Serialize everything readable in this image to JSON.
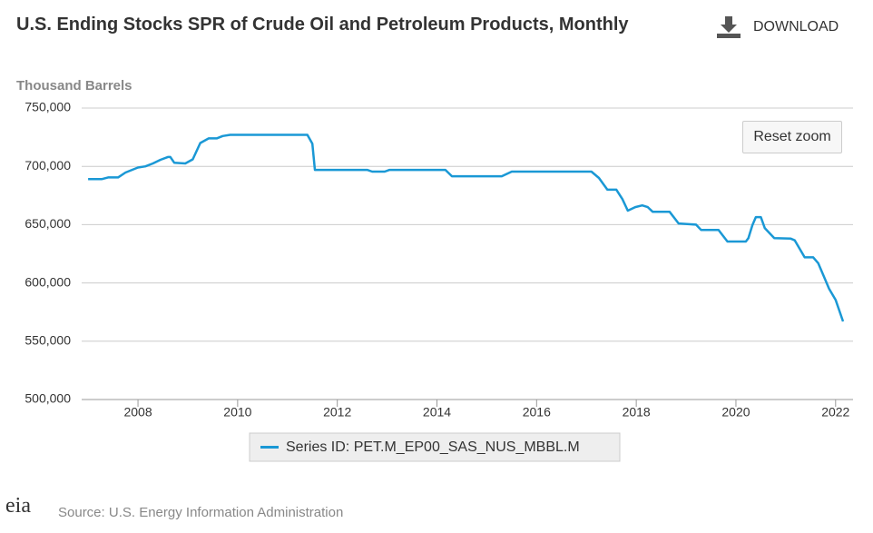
{
  "chart_data": {
    "type": "line",
    "title": "U.S. Ending Stocks SPR of Crude Oil and Petroleum Products, Monthly",
    "y_axis_label": "Thousand Barrels",
    "xlim": [
      2006.87,
      2022.35
    ],
    "xticks": [
      2008,
      2010,
      2012,
      2014,
      2016,
      2018,
      2020,
      2022
    ],
    "ylim": [
      500000,
      750000
    ],
    "yticks": [
      {
        "value": 500000,
        "label": "500,000"
      },
      {
        "value": 550000,
        "label": "550,000"
      },
      {
        "value": 600000,
        "label": "600,000"
      },
      {
        "value": 650000,
        "label": "650,000"
      },
      {
        "value": 700000,
        "label": "700,000"
      },
      {
        "value": 750000,
        "label": "750,000"
      }
    ],
    "grid": true,
    "series": [
      {
        "name": "Series ID: PET.M_EP00_SAS_NUS_MBBL.M",
        "color": "#1a98d5",
        "x": [
          2007.0,
          2007.27,
          2007.4,
          2007.6,
          2007.75,
          2008.0,
          2008.15,
          2008.3,
          2008.45,
          2008.6,
          2008.65,
          2008.73,
          2008.95,
          2009.1,
          2009.25,
          2009.42,
          2009.58,
          2009.7,
          2009.85,
          2011.4,
          2011.5,
          2011.55,
          2012.6,
          2012.7,
          2012.95,
          2013.05,
          2014.17,
          2014.3,
          2015.3,
          2015.5,
          2017.1,
          2017.25,
          2017.42,
          2017.6,
          2017.72,
          2017.83,
          2017.98,
          2018.12,
          2018.23,
          2018.33,
          2018.67,
          2018.85,
          2019.2,
          2019.3,
          2019.65,
          2019.83,
          2020.2,
          2020.25,
          2020.33,
          2020.4,
          2020.5,
          2020.58,
          2020.77,
          2021.1,
          2021.18,
          2021.38,
          2021.55,
          2021.65,
          2021.77,
          2021.87,
          2022.0,
          2022.15
        ],
        "values": [
          689000,
          689000,
          690500,
          690500,
          694700,
          699000,
          700000,
          702500,
          705600,
          708000,
          708000,
          703000,
          702500,
          706000,
          720000,
          724000,
          724000,
          726000,
          727000,
          727000,
          719500,
          697000,
          697000,
          695500,
          695500,
          697000,
          697000,
          691500,
          691500,
          695500,
          695500,
          690000,
          680000,
          680000,
          672000,
          662000,
          665000,
          666500,
          665000,
          661000,
          661000,
          651000,
          650000,
          645500,
          645500,
          635500,
          635500,
          638500,
          649500,
          656500,
          656500,
          647000,
          638500,
          638000,
          636500,
          622000,
          622000,
          617000,
          605000,
          595000,
          585500,
          567000
        ]
      }
    ]
  },
  "download": "DOWNLOAD",
  "reset_zoom": "Reset zoom",
  "source": "Source: U.S. Energy Information Administration",
  "logo": "eia"
}
